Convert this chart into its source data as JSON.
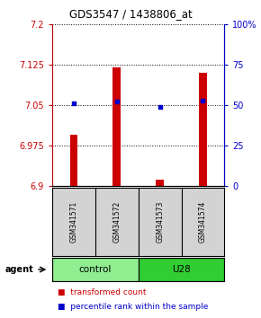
{
  "title": "GDS3547 / 1438806_at",
  "samples": [
    "GSM341571",
    "GSM341572",
    "GSM341573",
    "GSM341574"
  ],
  "bar_values": [
    6.995,
    7.12,
    6.912,
    7.11
  ],
  "bar_base": 6.9,
  "percentile_values": [
    7.053,
    7.057,
    7.046,
    7.058
  ],
  "ylim_left": [
    6.9,
    7.2
  ],
  "ylim_right": [
    0,
    100
  ],
  "yticks_left": [
    6.9,
    6.975,
    7.05,
    7.125,
    7.2
  ],
  "ytick_labels_left": [
    "6.9",
    "6.975",
    "7.05",
    "7.125",
    "7.2"
  ],
  "yticks_right": [
    0,
    25,
    50,
    75,
    100
  ],
  "ytick_labels_right": [
    "0",
    "25",
    "50",
    "75",
    "100%"
  ],
  "groups": [
    {
      "label": "control",
      "samples": [
        0,
        1
      ],
      "color": "#90EE90"
    },
    {
      "label": "U28",
      "samples": [
        2,
        3
      ],
      "color": "#32CD32"
    }
  ],
  "bar_color": "#CC0000",
  "dot_color": "#0000CC",
  "bar_width": 0.18,
  "agent_label": "agent",
  "legend_items": [
    {
      "color": "#CC0000",
      "label": "transformed count"
    },
    {
      "color": "#0000CC",
      "label": "percentile rank within the sample"
    }
  ],
  "background_color": "#ffffff",
  "header_bg": "#d3d3d3",
  "title_fontsize": 8.5,
  "axis_fontsize": 7,
  "sample_fontsize": 5.5,
  "group_fontsize": 7.5,
  "legend_fontsize": 6.5
}
